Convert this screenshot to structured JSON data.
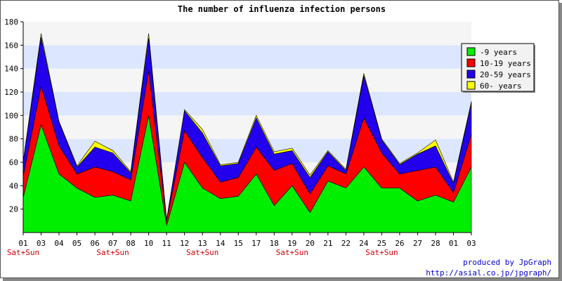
{
  "chart_data": {
    "type": "area",
    "stacked": true,
    "title": "The number of influenza infection persons",
    "xlabel": "",
    "ylabel": "",
    "ylim": [
      0,
      180
    ],
    "yticks": [
      20,
      40,
      60,
      80,
      100,
      120,
      140,
      160,
      180
    ],
    "categories": [
      "01",
      "03",
      "04",
      "05",
      "06",
      "07",
      "08",
      "10",
      "11",
      "12",
      "13",
      "14",
      "15",
      "17",
      "18",
      "19",
      "20",
      "21",
      "22",
      "24",
      "25",
      "26",
      "27",
      "28",
      "01",
      "03"
    ],
    "sublabels": [
      "Sat+Sun",
      "",
      "",
      "",
      "",
      "Sat+Sun",
      "",
      "",
      "",
      "",
      "Sat+Sun",
      "",
      "",
      "",
      "",
      "Sat+Sun",
      "",
      "",
      "",
      "",
      "Sat+Sun",
      "",
      "",
      "",
      "",
      ""
    ],
    "series": [
      {
        "name": "-9 years",
        "color": "#00ee00",
        "values": [
          30,
          92,
          50,
          38,
          30,
          32,
          27,
          100,
          6,
          60,
          38,
          29,
          31,
          50,
          23,
          40,
          17,
          44,
          38,
          56,
          38,
          38,
          27,
          32,
          26,
          56
        ]
      },
      {
        "name": "10-19 years",
        "color": "#ff0000",
        "values": [
          18,
          33,
          24,
          12,
          26,
          20,
          18,
          38,
          4,
          27,
          26,
          14,
          16,
          23,
          30,
          19,
          16,
          13,
          12,
          42,
          30,
          12,
          26,
          24,
          8,
          28
        ]
      },
      {
        "name": "20-59 years",
        "color": "#2200ee",
        "values": [
          12,
          42,
          20,
          6,
          17,
          16,
          6,
          28,
          1,
          17,
          21,
          14,
          12,
          25,
          14,
          11,
          14,
          12,
          3,
          36,
          11,
          8,
          14,
          18,
          8,
          26
        ]
      },
      {
        "name": "60- years",
        "color": "#ffff00",
        "values": [
          1,
          3,
          1,
          1,
          5,
          2,
          1,
          4,
          0,
          1,
          3,
          1,
          1,
          2,
          2,
          2,
          2,
          1,
          1,
          2,
          1,
          1,
          1,
          5,
          1,
          2
        ]
      }
    ],
    "grid": "horizontal bands",
    "band_colors": [
      "#f5f5f5",
      "#dce6ff"
    ],
    "legend_position": "right"
  },
  "credit": {
    "line1": "produced by JpGraph",
    "line2": "http://asial.co.jp/jpgraph/"
  }
}
